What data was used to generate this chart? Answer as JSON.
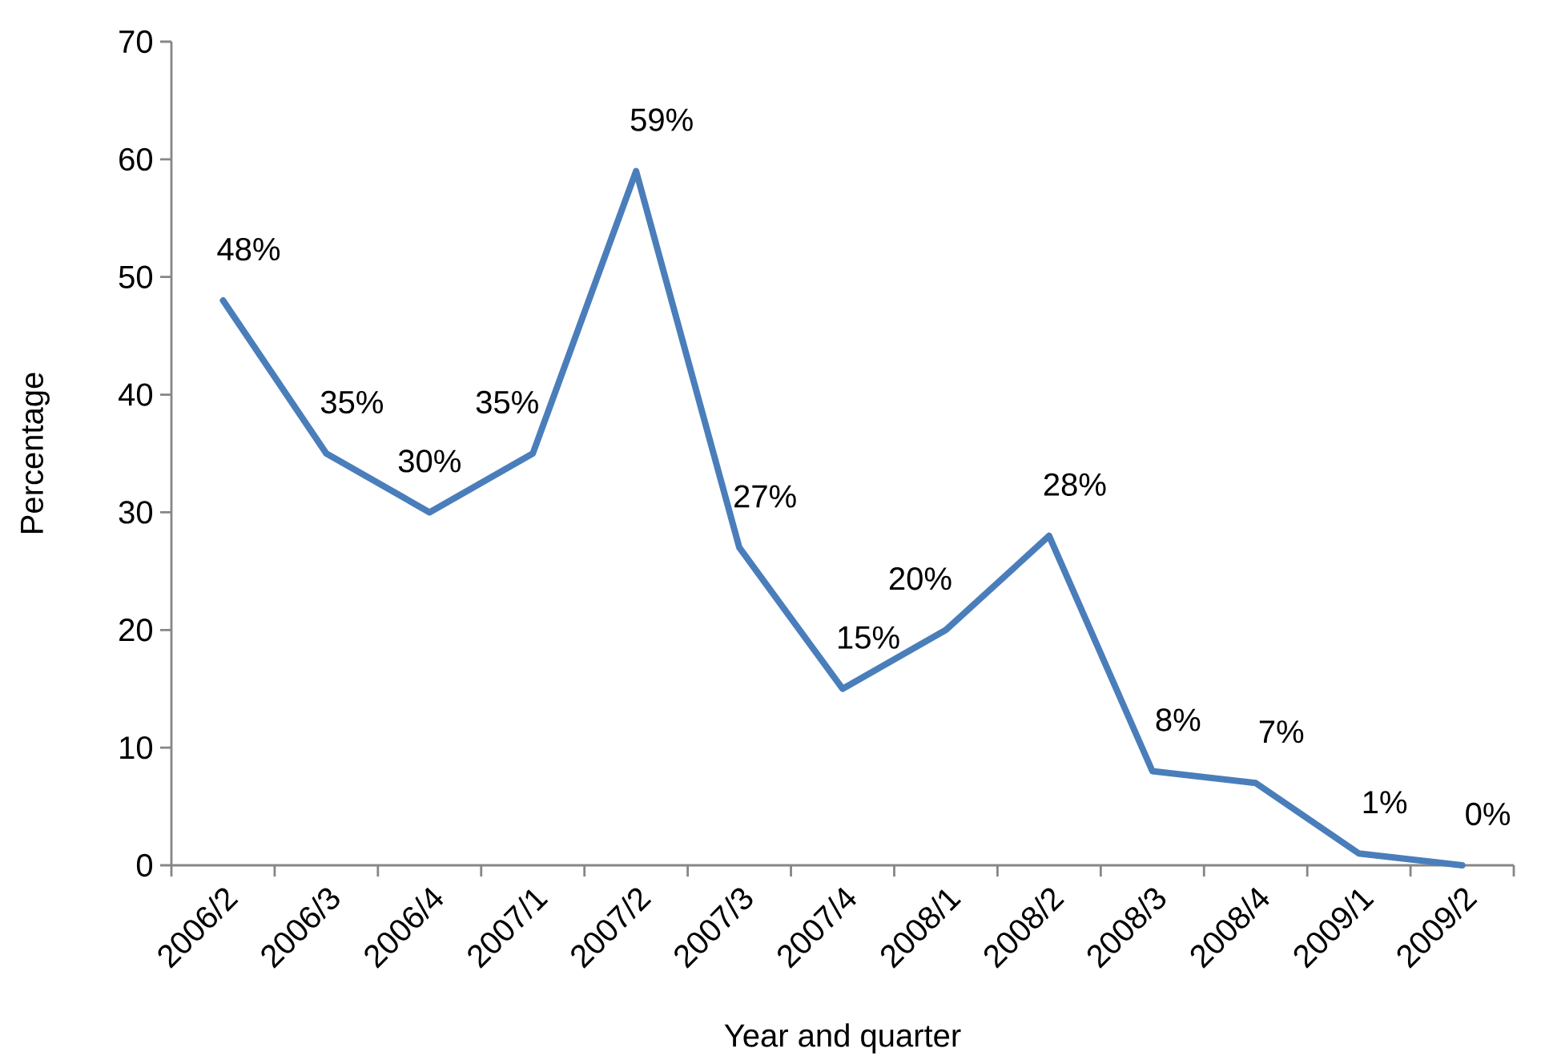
{
  "chart_data": {
    "type": "line",
    "xlabel": "Year and quarter",
    "ylabel": "Percentage",
    "categories": [
      "2006/2",
      "2006/3",
      "2006/4",
      "2007/1",
      "2007/2",
      "2007/3",
      "2007/4",
      "2008/1",
      "2008/2",
      "2008/3",
      "2008/4",
      "2009/1",
      "2009/2"
    ],
    "values": [
      48,
      35,
      30,
      35,
      59,
      27,
      15,
      20,
      28,
      8,
      7,
      1,
      0
    ],
    "value_labels": [
      "48%",
      "35%",
      "30%",
      "35%",
      "59%",
      "27%",
      "15%",
      "20%",
      "28%",
      "8%",
      "7%",
      "1%",
      "0%"
    ],
    "color": "#4a7ebb",
    "ylim": [
      0,
      70
    ],
    "yticks": [
      0,
      10,
      20,
      30,
      40,
      50,
      60,
      70
    ],
    "marker": "none",
    "line_style": "solid"
  }
}
